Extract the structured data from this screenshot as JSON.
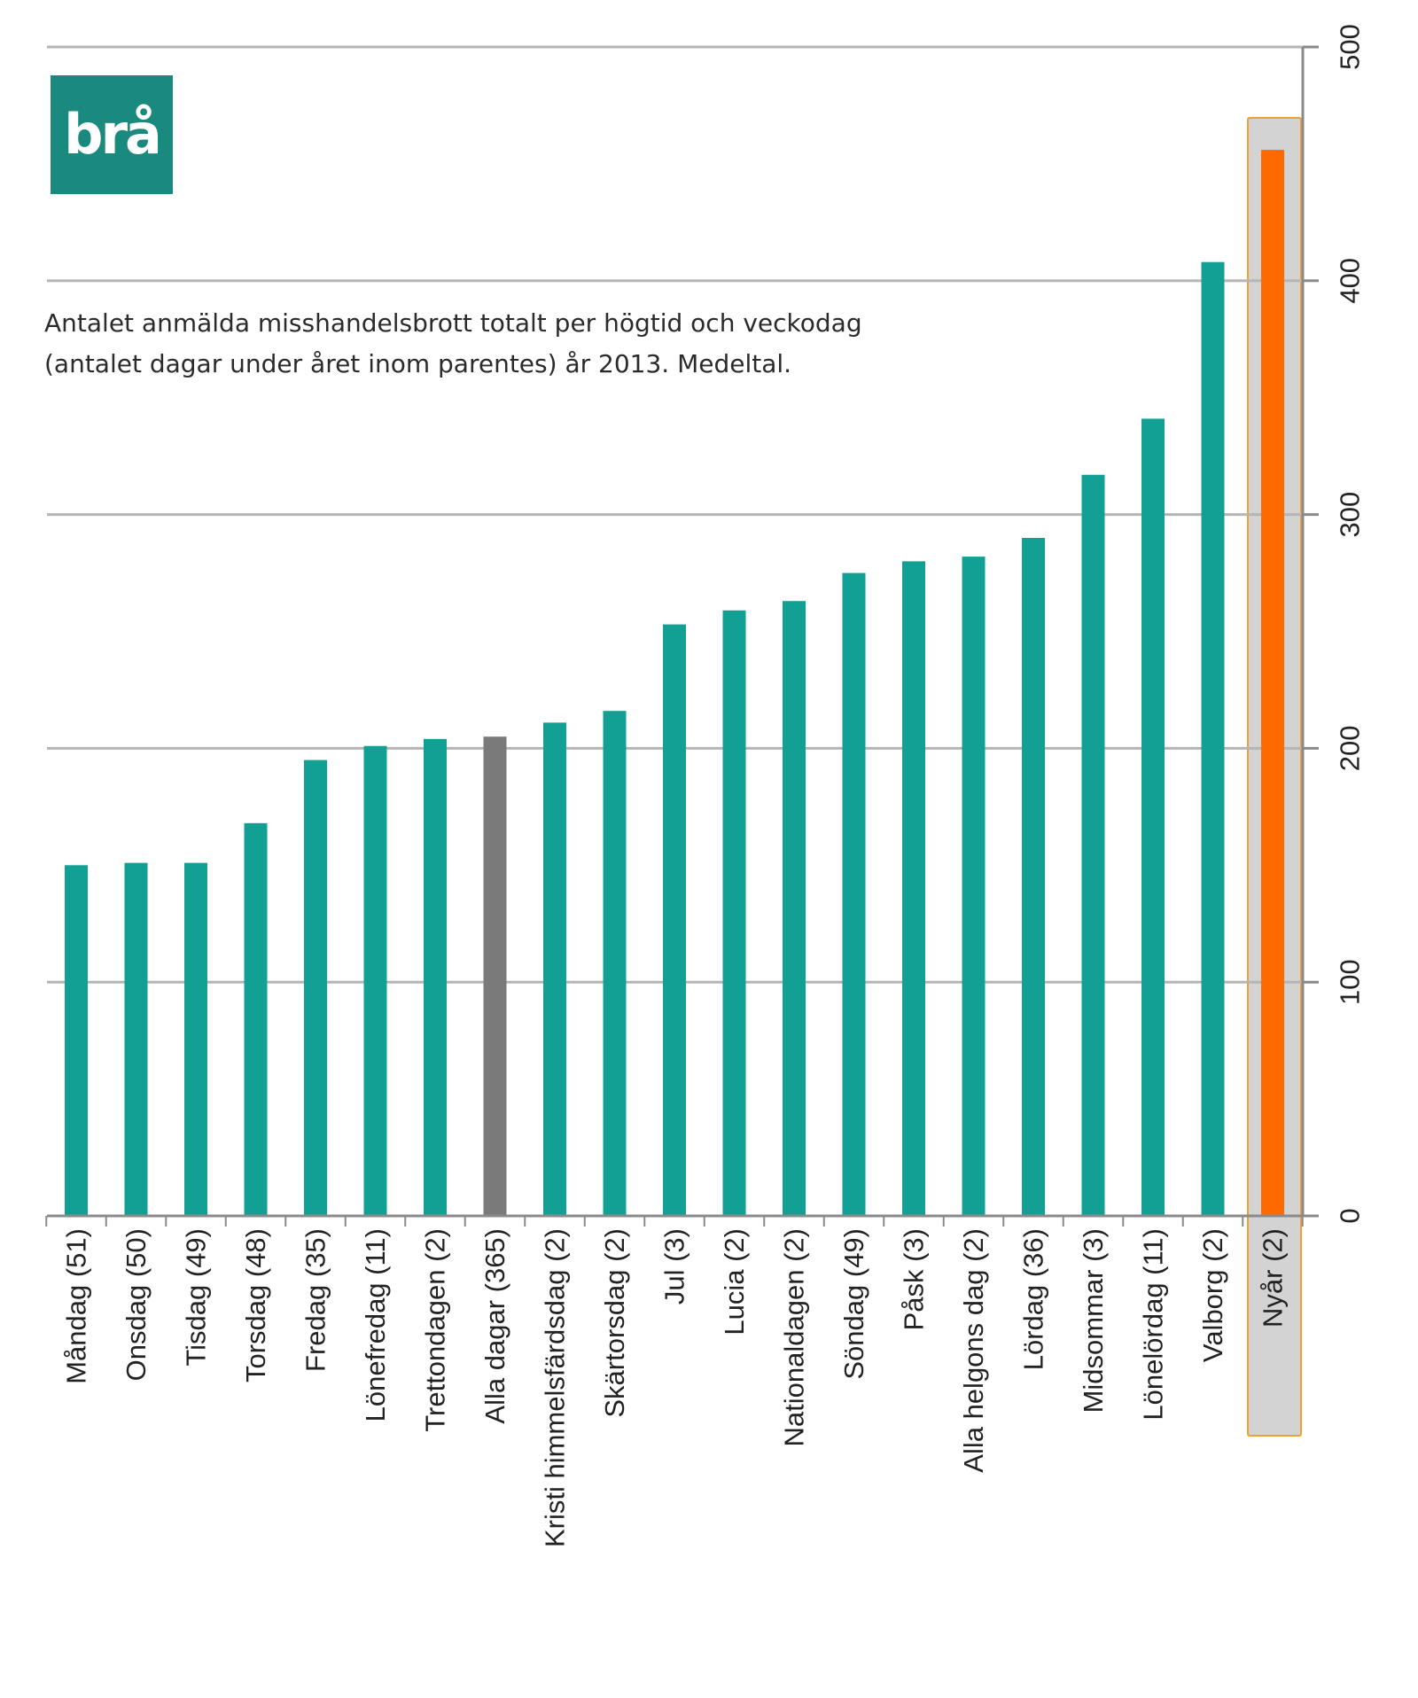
{
  "logo": {
    "text": "brå"
  },
  "chart_data": {
    "type": "bar",
    "title": "Antalet anmälda misshandelsbrott totalt per högtid och veckodag",
    "subtitle": "(antalet dagar under året inom parentes) år 2013. Medeltal.",
    "categories": [
      "Måndag (51)",
      "Onsdag (50)",
      "Tisdag (49)",
      "Torsdag (48)",
      "Fredag (35)",
      "Lönefredag (11)",
      "Trettondagen (2)",
      "Alla dagar (365)",
      "Kristi himmelsfärdsdag (2)",
      "Skärtorsdag (2)",
      "Jul (3)",
      "Lucia (2)",
      "Nationaldagen (2)",
      "Söndag (49)",
      "Påsk (3)",
      "Alla helgons dag (2)",
      "Lördag (36)",
      "Midsommar (3)",
      "Lönelördag (11)",
      "Valborg (2)",
      "Nyår (2)"
    ],
    "values": [
      150,
      151,
      151,
      168,
      195,
      201,
      204,
      205,
      211,
      216,
      253,
      259,
      263,
      275,
      280,
      282,
      290,
      317,
      341,
      408,
      456
    ],
    "colors": {
      "default": "#12a095",
      "average": "#7a7a7a",
      "highlight": "#ff6a00",
      "highlight_bg": "#d3d3d3",
      "highlight_border": "#f0a030",
      "grid": "#b5b5b5",
      "axis": "#8a8a8a"
    },
    "average_category": "Alla dagar (365)",
    "highlight_category": "Nyår (2)",
    "y_axis_position": "right",
    "ylim": [
      0,
      500
    ],
    "yticks": [
      0,
      100,
      200,
      300,
      400,
      500
    ],
    "grid": true,
    "xlabel": "",
    "ylabel": ""
  }
}
